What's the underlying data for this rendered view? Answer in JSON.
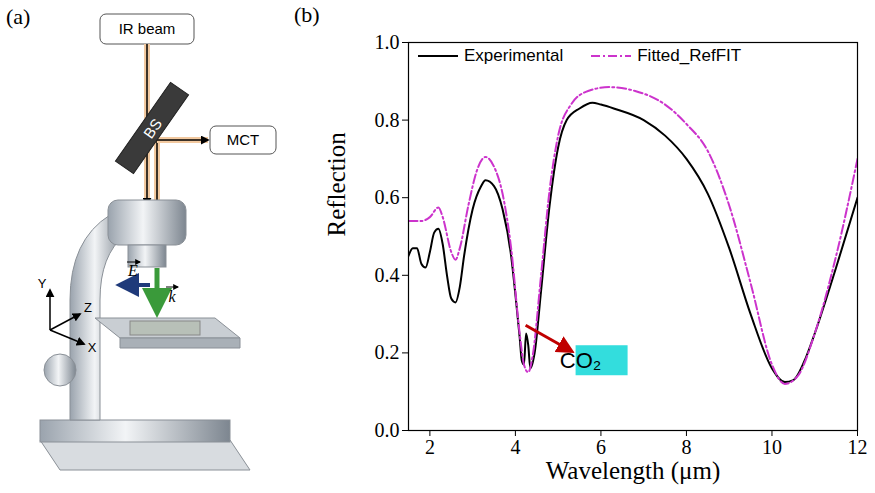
{
  "diagram": {
    "panel_label": "(a)",
    "source": "IR beam",
    "splitter": "BS",
    "detector": "MCT",
    "field": "E",
    "wavevector": "k",
    "axes": [
      "Y",
      "Z",
      "X"
    ]
  },
  "chart_data": {
    "type": "line",
    "panel_label": "(b)",
    "x_label": "Wavelength (μm)",
    "y_label": "Reflection",
    "xlim": [
      1.5,
      12
    ],
    "ylim": [
      0,
      1
    ],
    "xticks": [
      2,
      4,
      6,
      8,
      10,
      12
    ],
    "yticks": [
      {
        "value": 0,
        "label": "0.0"
      },
      {
        "value": 0.2,
        "label": "0.2"
      },
      {
        "value": 0.4,
        "label": "0.4"
      },
      {
        "value": 0.6,
        "label": "0.6"
      },
      {
        "value": 0.8,
        "label": "0.8"
      },
      {
        "value": 1,
        "label": "1.0"
      }
    ],
    "legend": "top-left",
    "grid": false,
    "series": [
      {
        "name": "Experimental",
        "color": "#000000",
        "line_style": "solid",
        "x": [
          1.5,
          1.6,
          1.7,
          1.8,
          1.9,
          2.0,
          2.1,
          2.2,
          2.3,
          2.4,
          2.5,
          2.6,
          2.7,
          2.8,
          3.0,
          3.2,
          3.3,
          3.5,
          3.7,
          3.9,
          4.0,
          4.1,
          4.15,
          4.2,
          4.25,
          4.3,
          4.35,
          4.45,
          4.6,
          4.8,
          5.0,
          5.2,
          5.5,
          5.8,
          6.0,
          6.3,
          7.0,
          7.5,
          8.0,
          8.5,
          9.0,
          9.5,
          10.0,
          10.3,
          10.5,
          10.8,
          11.0,
          11.5,
          12.0
        ],
        "values": [
          0.45,
          0.47,
          0.47,
          0.43,
          0.42,
          0.46,
          0.51,
          0.52,
          0.48,
          0.4,
          0.34,
          0.33,
          0.37,
          0.45,
          0.57,
          0.63,
          0.645,
          0.63,
          0.57,
          0.45,
          0.35,
          0.24,
          0.18,
          0.17,
          0.25,
          0.22,
          0.16,
          0.2,
          0.36,
          0.58,
          0.73,
          0.8,
          0.83,
          0.845,
          0.84,
          0.83,
          0.8,
          0.76,
          0.7,
          0.61,
          0.47,
          0.3,
          0.16,
          0.125,
          0.13,
          0.19,
          0.25,
          0.42,
          0.6
        ]
      },
      {
        "name": "Fitted_RefFIT",
        "color": "#cc33cc",
        "line_style": "dashdot",
        "x": [
          1.5,
          1.8,
          2.0,
          2.2,
          2.3,
          2.5,
          2.6,
          2.7,
          2.9,
          3.1,
          3.3,
          3.5,
          3.7,
          3.9,
          4.1,
          4.2,
          4.3,
          4.4,
          4.6,
          4.8,
          5.0,
          5.3,
          5.7,
          6.2,
          6.8,
          7.5,
          8.0,
          8.5,
          9.0,
          9.5,
          10.0,
          10.3,
          10.6,
          11.0,
          11.5,
          12.0
        ],
        "values": [
          0.54,
          0.54,
          0.55,
          0.575,
          0.55,
          0.46,
          0.44,
          0.47,
          0.58,
          0.67,
          0.705,
          0.68,
          0.61,
          0.47,
          0.25,
          0.17,
          0.15,
          0.19,
          0.4,
          0.62,
          0.76,
          0.84,
          0.875,
          0.885,
          0.875,
          0.84,
          0.79,
          0.72,
          0.58,
          0.38,
          0.17,
          0.12,
          0.14,
          0.25,
          0.45,
          0.7
        ]
      }
    ],
    "annotations": [
      {
        "text": "CO₂",
        "x": 4.25,
        "y": 0.27
      }
    ]
  }
}
